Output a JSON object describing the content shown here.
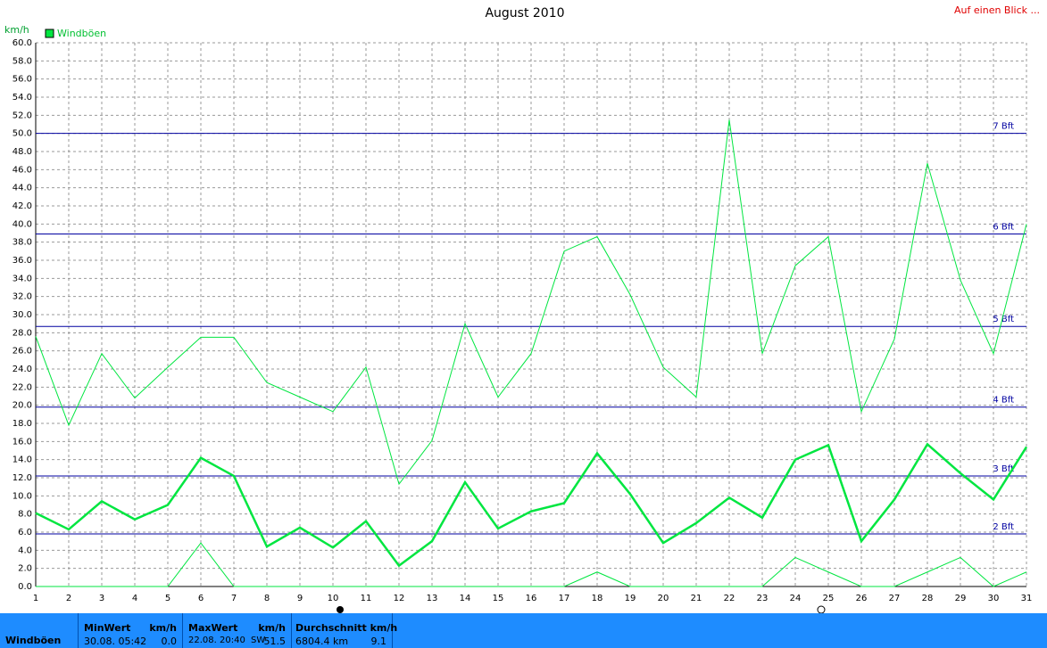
{
  "chart_data": {
    "type": "line",
    "title": "August 2010",
    "link": "Auf einen Blick ...",
    "y_unit": "km/h",
    "legend": "Windböen",
    "categories": [
      1,
      2,
      3,
      4,
      5,
      6,
      7,
      8,
      9,
      10,
      11,
      12,
      13,
      14,
      15,
      16,
      17,
      18,
      19,
      20,
      21,
      22,
      23,
      24,
      25,
      26,
      27,
      28,
      29,
      30,
      31
    ],
    "series": [
      {
        "color": "#00e640",
        "width": 1,
        "values": [
          27.6,
          17.8,
          25.7,
          20.8,
          24.2,
          27.5,
          27.5,
          22.5,
          20.9,
          19.3,
          24.2,
          11.3,
          16.1,
          29.0,
          20.9,
          25.7,
          37.0,
          38.6,
          32.2,
          24.2,
          20.9,
          51.5,
          25.7,
          35.4,
          38.6,
          19.3,
          27.3,
          46.7,
          33.8,
          25.7,
          40.0
        ]
      },
      {
        "color": "#00e640",
        "width": 2.5,
        "values": [
          8.1,
          6.3,
          9.4,
          7.4,
          9.0,
          14.2,
          12.2,
          4.4,
          6.5,
          4.3,
          7.2,
          2.3,
          5.0,
          11.5,
          6.4,
          8.3,
          9.2,
          14.7,
          10.2,
          4.8,
          7.0,
          9.8,
          7.6,
          14.0,
          15.6,
          5.0,
          9.6,
          15.7,
          12.5,
          9.6,
          15.4
        ]
      },
      {
        "color": "#00e640",
        "width": 1,
        "values": [
          0,
          0,
          0,
          0,
          0,
          4.8,
          0,
          0,
          0,
          0,
          0,
          0,
          0,
          0,
          0,
          0,
          0,
          1.6,
          0,
          0,
          0,
          0,
          0,
          3.2,
          1.6,
          0,
          0,
          1.6,
          3.2,
          0,
          1.6
        ]
      }
    ],
    "ylim": [
      0,
      60
    ],
    "yticks": [
      {
        "value": 0,
        "label": "0.0"
      },
      {
        "value": 2,
        "label": "2.0"
      },
      {
        "value": 4,
        "label": "4.0"
      },
      {
        "value": 6,
        "label": "6.0"
      },
      {
        "value": 8,
        "label": "8.0"
      },
      {
        "value": 10,
        "label": "10.0"
      },
      {
        "value": 12,
        "label": "12.0"
      },
      {
        "value": 14,
        "label": "14.0"
      },
      {
        "value": 16,
        "label": "16.0"
      },
      {
        "value": 18,
        "label": "18.0"
      },
      {
        "value": 20,
        "label": "20.0"
      },
      {
        "value": 22,
        "label": "22.0"
      },
      {
        "value": 24,
        "label": "24.0"
      },
      {
        "value": 26,
        "label": "26.0"
      },
      {
        "value": 28,
        "label": "28.0"
      },
      {
        "value": 30,
        "label": "30.0"
      },
      {
        "value": 32,
        "label": "32.0"
      },
      {
        "value": 34,
        "label": "34.0"
      },
      {
        "value": 36,
        "label": "36.0"
      },
      {
        "value": 38,
        "label": "38.0"
      },
      {
        "value": 40,
        "label": "40.0"
      },
      {
        "value": 42,
        "label": "42.0"
      },
      {
        "value": 44,
        "label": "44.0"
      },
      {
        "value": 46,
        "label": "46.0"
      },
      {
        "value": 48,
        "label": "48.0"
      },
      {
        "value": 50,
        "label": "50.0"
      },
      {
        "value": 52,
        "label": "52.0"
      },
      {
        "value": 54,
        "label": "54.0"
      },
      {
        "value": 56,
        "label": "56.0"
      },
      {
        "value": 58,
        "label": "58.0"
      },
      {
        "value": 60,
        "label": "60.0"
      }
    ],
    "grid": true,
    "bft_lines": [
      {
        "value": 5.8,
        "label": "2 Bft"
      },
      {
        "value": 12.2,
        "label": "3 Bft"
      },
      {
        "value": 19.8,
        "label": "4 Bft"
      },
      {
        "value": 28.7,
        "label": "5 Bft"
      },
      {
        "value": 38.9,
        "label": "6 Bft"
      },
      {
        "value": 50.0,
        "label": "7 Bft"
      }
    ],
    "bft_color": "#0000a0"
  },
  "stats": {
    "row_label": "Windböen",
    "min": {
      "title": "MinWert",
      "unit": "km/h",
      "time": "30.08.  05:42",
      "value": "0.0"
    },
    "max": {
      "title": "MaxWert",
      "unit": "km/h",
      "time": "22.08.  20:40",
      "dir": "SW",
      "value": "51.5"
    },
    "avg": {
      "title": "Durchschnitt km/h",
      "dist": "6804.4 km",
      "value": "9.1"
    }
  }
}
